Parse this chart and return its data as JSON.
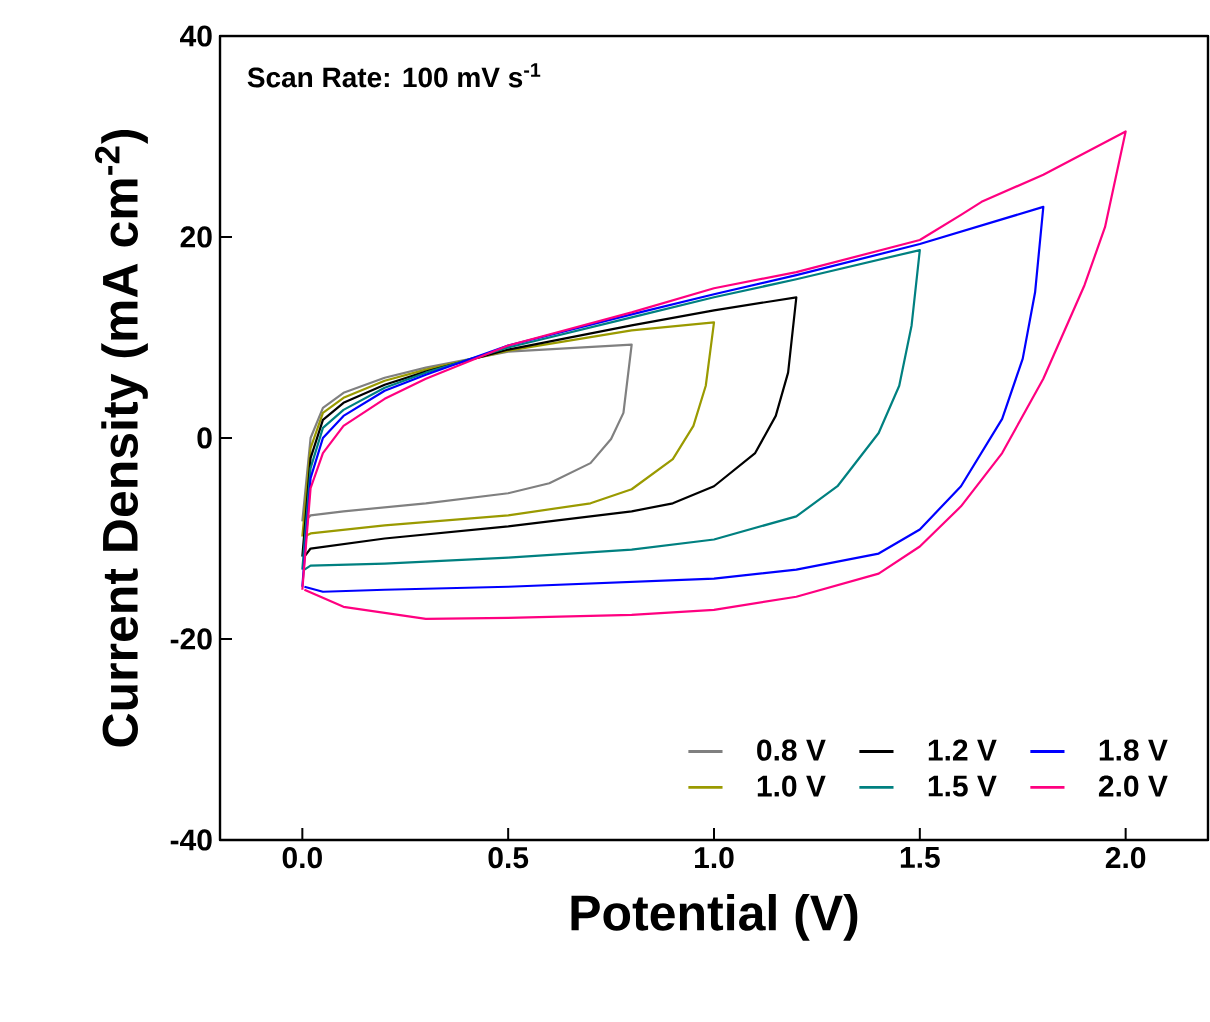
{
  "chart_data": {
    "type": "line",
    "xlabel": "Potential (V)",
    "ylabel": "Current Density (mA cm$^{-2}$)",
    "annotations": [
      "Scan Rate: 100 mV s$^{-1}$"
    ],
    "xlim": [
      -0.2,
      2.2
    ],
    "ylim": [
      -40,
      40
    ],
    "xticks": [
      {
        "value": 0,
        "label": "0.0"
      },
      0.5,
      {
        "value": 1,
        "label": "1.0"
      },
      1.5,
      {
        "value": 2,
        "label": "2.0"
      }
    ],
    "yticks": [
      -40,
      -20,
      0,
      20,
      40
    ],
    "legend": "bottom right",
    "marker": "none",
    "line_style": "solid",
    "series": [
      {
        "name": "0.8 V",
        "color": "#808080",
        "x": [
          0,
          0.02,
          0.05,
          0.1,
          0.2,
          0.3,
          0.5,
          0.8,
          0.78,
          0.75,
          0.7,
          0.6,
          0.5,
          0.3,
          0.1,
          0.02,
          0.005
        ],
        "values": [
          -8.3,
          0,
          3,
          4.5,
          6,
          7,
          8.6,
          9.3,
          2.5,
          -0.1,
          -2.5,
          -4.5,
          -5.5,
          -6.5,
          -7.3,
          -7.7,
          -8.3
        ]
      },
      {
        "name": "1.0 V",
        "color": "#9a9a00",
        "x": [
          0,
          0.02,
          0.05,
          0.1,
          0.2,
          0.3,
          0.5,
          0.8,
          1.0,
          0.98,
          0.95,
          0.9,
          0.8,
          0.7,
          0.5,
          0.2,
          0.02,
          0.005
        ],
        "values": [
          -9.8,
          -1,
          2.5,
          4,
          5.7,
          6.8,
          8.7,
          10.7,
          11.5,
          5.2,
          1.2,
          -2.1,
          -5.1,
          -6.5,
          -7.7,
          -8.7,
          -9.5,
          -9.8
        ]
      },
      {
        "name": "1.2 V",
        "color": "#000000",
        "x": [
          0,
          0.02,
          0.05,
          0.1,
          0.2,
          0.3,
          0.5,
          0.8,
          1.0,
          1.2,
          1.18,
          1.15,
          1.1,
          1.0,
          0.9,
          0.8,
          0.5,
          0.2,
          0.02,
          0.005
        ],
        "values": [
          -11.8,
          -2,
          1.8,
          3.5,
          5.3,
          6.6,
          8.8,
          11.2,
          12.7,
          14,
          6.5,
          2.2,
          -1.5,
          -4.8,
          -6.5,
          -7.3,
          -8.8,
          -10,
          -11,
          -11.8
        ]
      },
      {
        "name": "1.5 V",
        "color": "#008080",
        "x": [
          0,
          0.02,
          0.05,
          0.1,
          0.2,
          0.3,
          0.5,
          0.8,
          1.0,
          1.2,
          1.5,
          1.48,
          1.45,
          1.4,
          1.3,
          1.2,
          1.0,
          0.8,
          0.5,
          0.2,
          0.02,
          0.005
        ],
        "values": [
          -13.1,
          -3,
          1,
          2.8,
          5,
          6.5,
          9,
          12,
          14,
          15.8,
          18.7,
          11.2,
          5.2,
          0.5,
          -4.8,
          -7.8,
          -10.1,
          -11.1,
          -11.9,
          -12.5,
          -12.7,
          -13.1
        ]
      },
      {
        "name": "1.8 V",
        "color": "#0000ff",
        "x": [
          0,
          0.02,
          0.05,
          0.1,
          0.2,
          0.3,
          0.5,
          0.8,
          1.0,
          1.2,
          1.5,
          1.8,
          1.78,
          1.75,
          1.7,
          1.6,
          1.5,
          1.4,
          1.2,
          1.0,
          0.5,
          0.2,
          0.05,
          0.005
        ],
        "values": [
          -14.8,
          -4,
          0,
          2.2,
          4.7,
          6.3,
          9.2,
          12.3,
          14.3,
          16.2,
          19.3,
          23,
          14.5,
          7.9,
          1.9,
          -4.8,
          -9.1,
          -11.5,
          -13.1,
          -14,
          -14.8,
          -15.1,
          -15.3,
          -14.8
        ]
      },
      {
        "name": "2.0 V",
        "color": "#ff0080",
        "x": [
          0,
          0.02,
          0.05,
          0.1,
          0.2,
          0.3,
          0.5,
          0.8,
          1.0,
          1.2,
          1.5,
          1.6,
          1.65,
          1.8,
          2.0,
          1.95,
          1.9,
          1.8,
          1.7,
          1.6,
          1.5,
          1.4,
          1.2,
          1.0,
          0.8,
          0.5,
          0.3,
          0.1,
          0.005
        ],
        "values": [
          -15.1,
          -5,
          -1.5,
          1.2,
          3.9,
          5.9,
          9.2,
          12.5,
          14.9,
          16.5,
          19.7,
          22.2,
          23.5,
          26.2,
          30.5,
          21,
          15.2,
          5.9,
          -1.5,
          -6.8,
          -10.8,
          -13.5,
          -15.8,
          -17.1,
          -17.6,
          -17.9,
          -18,
          -16.8,
          -15.1
        ]
      }
    ]
  }
}
